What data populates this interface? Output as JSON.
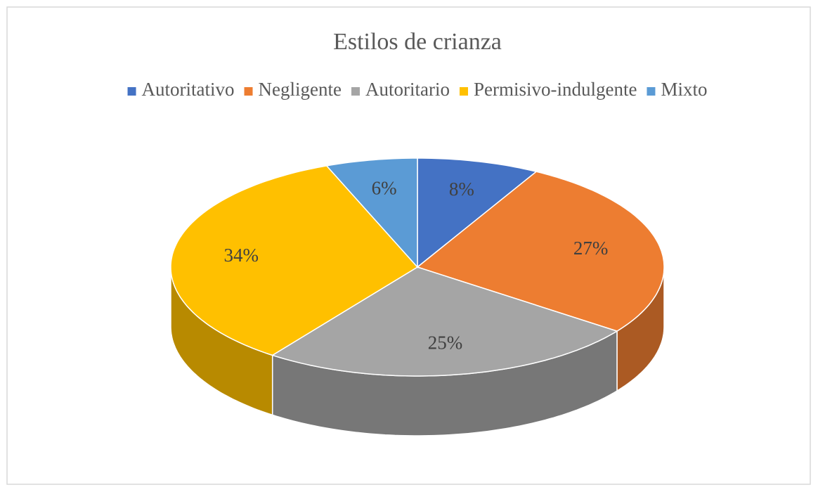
{
  "chart_data": {
    "type": "pie",
    "title": "Estilos  de crianza",
    "categories": [
      "Autoritativo",
      "Negligente",
      "Autoritario",
      "Permisivo-indulgente",
      "Mixto"
    ],
    "values": [
      8,
      27,
      25,
      34,
      6
    ],
    "value_labels": [
      "8%",
      "27%",
      "25%",
      "34%",
      "6%"
    ],
    "colors": [
      "#4472c4",
      "#ed7d31",
      "#a5a5a5",
      "#ffc000",
      "#5b9bd5"
    ],
    "legend": "top"
  }
}
